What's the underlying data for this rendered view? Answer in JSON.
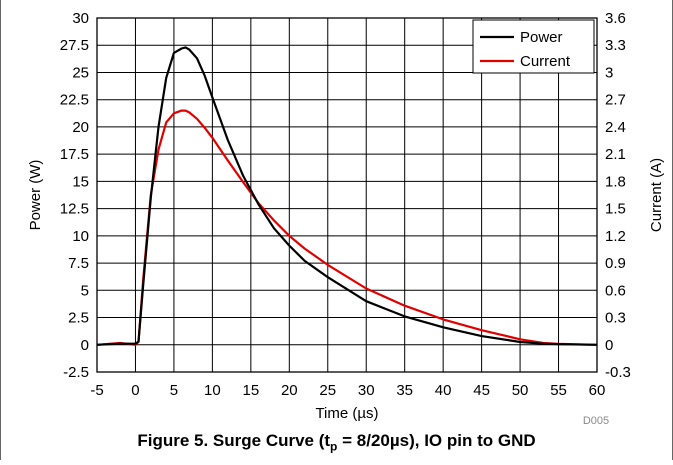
{
  "chart_data": {
    "type": "line",
    "xlabel": "Time (µs)",
    "ylabel_left": "Power (W)",
    "ylabel_right": "Current (A)",
    "xlim": [
      -5,
      60
    ],
    "ylim_left": [
      -2.5,
      30
    ],
    "ylim_right": [
      -0.3,
      3.6
    ],
    "grid": true,
    "legend_position": "top-right",
    "x_ticks": [
      -5,
      0,
      5,
      10,
      15,
      20,
      25,
      30,
      35,
      40,
      45,
      50,
      55,
      60
    ],
    "y_ticks_left": [
      "-2.5",
      "0",
      "2.5",
      "5",
      "7.5",
      "10",
      "12.5",
      "15",
      "17.5",
      "20",
      "22.5",
      "25",
      "27.5",
      "30"
    ],
    "y_ticks_right": [
      "-0.3",
      "0",
      "0.3",
      "0.6",
      "0.9",
      "1.2",
      "1.5",
      "1.8",
      "2.1",
      "2.4",
      "2.7",
      "3",
      "3.3",
      "3.6"
    ],
    "series": [
      {
        "name": "Power",
        "color": "#000000",
        "axis": "left",
        "x": [
          -5,
          -2,
          0,
          0.4,
          1,
          2,
          3,
          4,
          5,
          6,
          6.5,
          7,
          8,
          9,
          10,
          12,
          14,
          16,
          18,
          20,
          22,
          25,
          30,
          35,
          40,
          45,
          50,
          53,
          55,
          60
        ],
        "y": [
          0,
          0.1,
          0.1,
          0.3,
          5.5,
          13.5,
          20,
          24.5,
          26.8,
          27.2,
          27.3,
          27.1,
          26.3,
          24.7,
          22.7,
          18.8,
          15.5,
          12.9,
          10.7,
          9.1,
          7.7,
          6.2,
          4.0,
          2.6,
          1.6,
          0.8,
          0.25,
          0.1,
          0.05,
          0.0
        ]
      },
      {
        "name": "Current",
        "color": "#e00000",
        "axis": "right",
        "x": [
          -5,
          -2,
          0,
          0.4,
          1,
          2,
          3,
          4,
          5,
          6,
          6.5,
          7,
          8,
          9,
          10,
          12,
          14,
          16,
          18,
          20,
          22,
          25,
          30,
          35,
          40,
          45,
          50,
          53,
          55,
          60
        ],
        "y": [
          0,
          0.02,
          0,
          0.03,
          0.72,
          1.65,
          2.15,
          2.45,
          2.55,
          2.58,
          2.58,
          2.56,
          2.49,
          2.39,
          2.28,
          2.03,
          1.79,
          1.56,
          1.37,
          1.2,
          1.06,
          0.88,
          0.62,
          0.43,
          0.28,
          0.16,
          0.06,
          0.02,
          0.01,
          0.0
        ]
      }
    ]
  },
  "figure_id": "D005",
  "caption": {
    "prefix": "Figure 5. Surge Curve (t",
    "sub": "p",
    "suffix": " = 8/20µs), IO pin to GND"
  }
}
